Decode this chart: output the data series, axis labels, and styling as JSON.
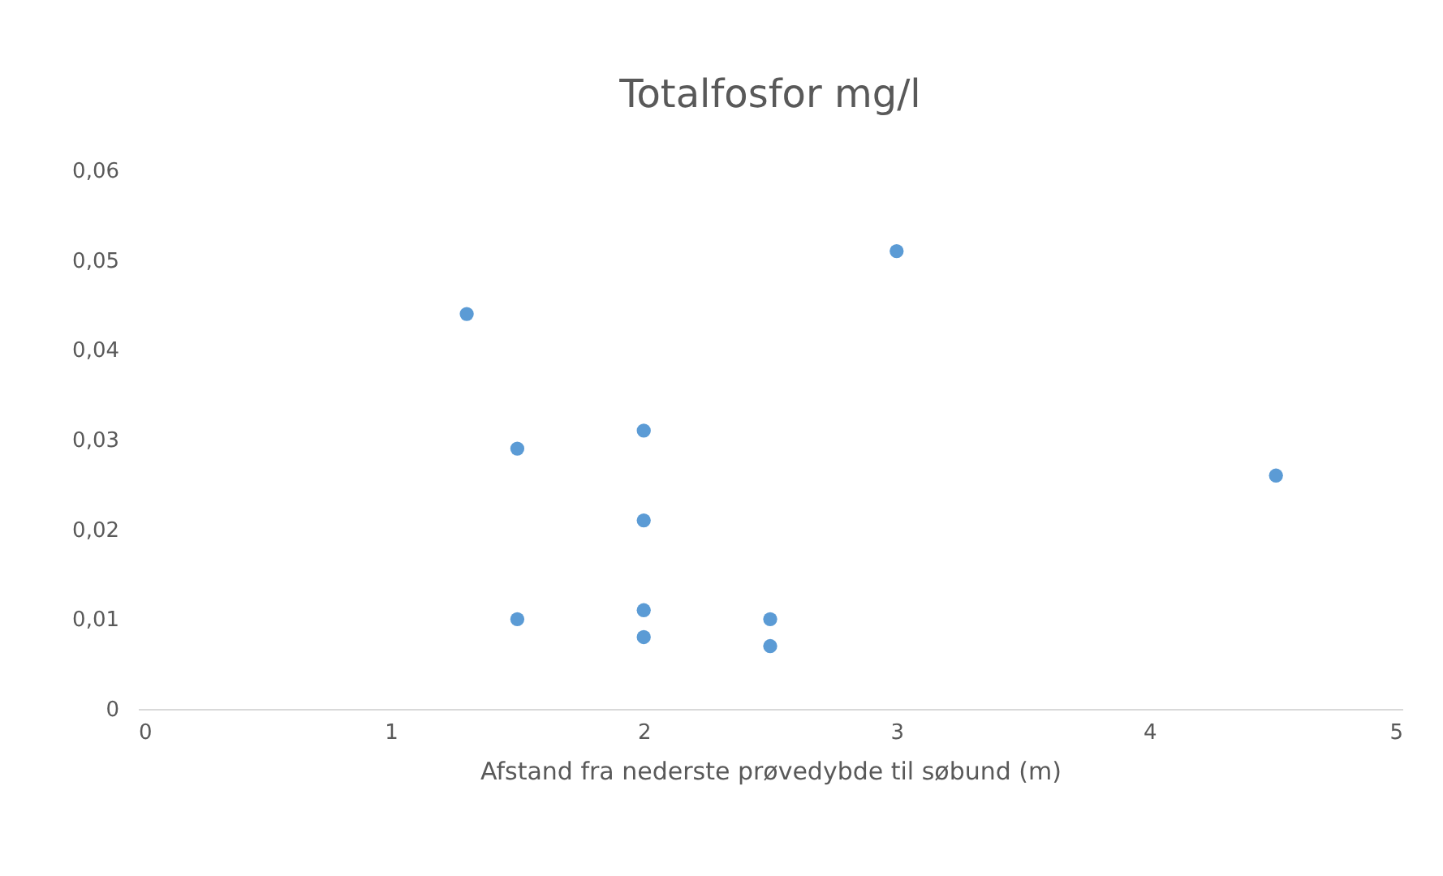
{
  "chart_data": {
    "type": "scatter",
    "title": "Totalfosfor mg/l",
    "xlabel": "Afstand fra nederste prøvedybde til søbund (m)",
    "x": [
      1.3,
      1.5,
      1.5,
      2,
      2,
      2,
      2,
      2.5,
      2.5,
      3,
      4.5
    ],
    "series": [
      {
        "color": "#5b9bd5",
        "values": [
          0.044,
          0.029,
          0.01,
          0.031,
          0.021,
          0.011,
          0.008,
          0.01,
          0.007,
          0.051,
          0.026
        ]
      }
    ],
    "xlim": [
      0,
      5
    ],
    "xticks": [
      0,
      1,
      2,
      3,
      4,
      5
    ],
    "ylim": [
      0,
      0.06
    ],
    "yticks": [
      0,
      {
        "value": 0.01,
        "label": "0,01"
      },
      {
        "value": 0.02,
        "label": "0,02"
      },
      {
        "value": 0.03,
        "label": "0,03"
      },
      {
        "value": 0.04,
        "label": "0,04"
      },
      {
        "value": 0.05,
        "label": "0,05"
      },
      {
        "value": 0.06,
        "label": "0,06"
      }
    ],
    "marker": "circle"
  }
}
